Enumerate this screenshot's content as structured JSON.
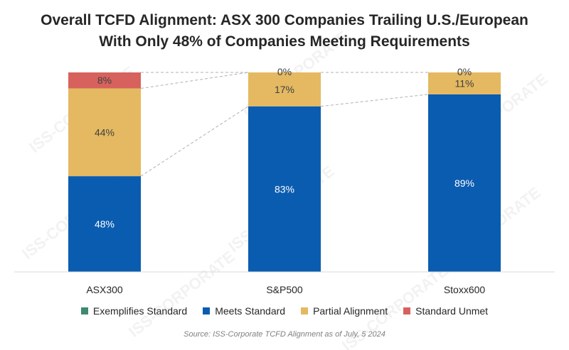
{
  "title_lines": [
    "Overall TCFD Alignment: ASX 300 Companies Trailing U.S./European",
    "With Only 48% of Companies Meeting Requirements"
  ],
  "source": "Source: ISS-Corporate TCFD Alignment as of July, 5 2024",
  "watermark": "ISS-CORPORATE",
  "colors": {
    "exemplifies": "#3d8a6e",
    "meets": "#0a5cb0",
    "partial": "#e4b961",
    "unmet": "#d7625d",
    "axis": "#d9d9d9",
    "connector": "#b0b0b0"
  },
  "chart_data": {
    "type": "bar",
    "stacked": true,
    "title": "Overall TCFD Alignment: ASX 300 Companies Trailing U.S./European With Only 48% of Companies Meeting Requirements",
    "categories": [
      "ASX300",
      "S&P500",
      "Stoxx600"
    ],
    "series": [
      {
        "name": "Exemplifies Standard",
        "values": [
          0,
          0,
          0
        ],
        "labels": [
          null,
          null,
          null
        ]
      },
      {
        "name": "Meets Standard",
        "values": [
          48,
          83,
          89
        ],
        "labels": [
          "48%",
          "83%",
          "89%"
        ]
      },
      {
        "name": "Partial Alignment",
        "values": [
          44,
          17,
          11
        ],
        "labels": [
          "44%",
          "17%",
          "11%"
        ]
      },
      {
        "name": "Standard Unmet",
        "values": [
          8,
          0,
          0
        ],
        "labels": [
          "8%",
          "0%",
          "0%"
        ]
      }
    ],
    "ylim": [
      0,
      100
    ],
    "xlabel": "",
    "ylabel": "",
    "legend_position": "bottom"
  }
}
